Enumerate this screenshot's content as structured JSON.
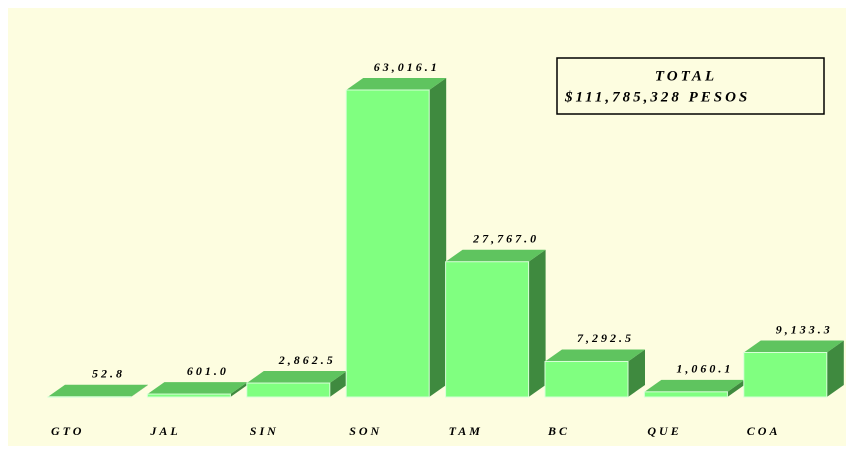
{
  "chart_data": {
    "type": "bar3d",
    "annotations": [
      "TOTAL",
      "$111,785,328 PESOS"
    ],
    "categories": [
      "GTO",
      "JAL",
      "SIN",
      "SON",
      "TAM",
      "BC",
      "QUE",
      "COA"
    ],
    "values": [
      52.8,
      601.0,
      2862.5,
      63016.1,
      27767.0,
      7292.5,
      1060.1,
      9133.3
    ],
    "value_labels": [
      "52.8",
      "601.0",
      "2,862.5",
      "63,016.1",
      "27,767.0",
      "7,292.5",
      "1,060.1",
      "9,133.3"
    ],
    "color": "#80ff80"
  }
}
